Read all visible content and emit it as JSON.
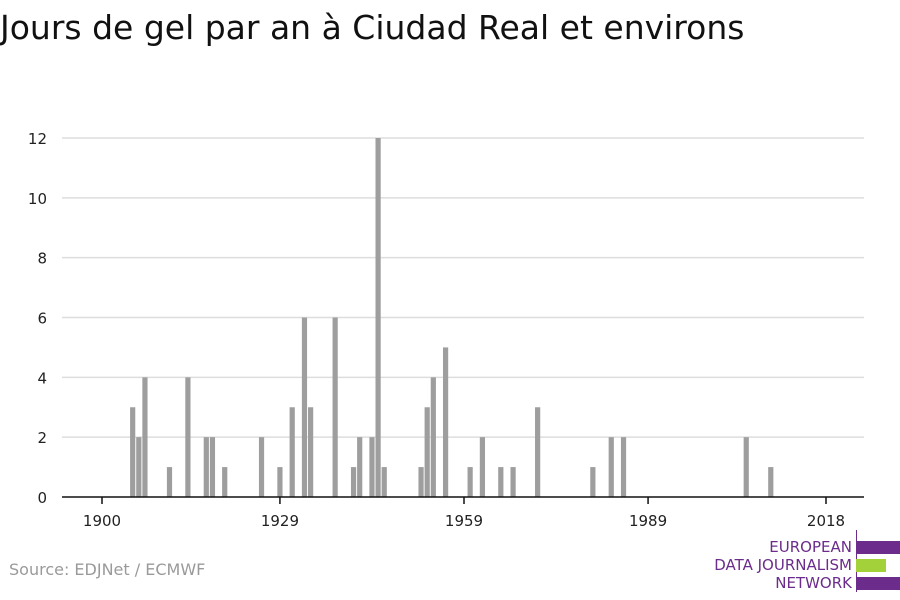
{
  "title": "Jours de gel par an à Ciudad Real et environs",
  "source": "Source: EDJNet / ECMWF",
  "logo": {
    "lines": [
      "EUROPEAN",
      "DATA JOURNALISM",
      "NETWORK"
    ]
  },
  "colors": {
    "bar": "#9e9e9e",
    "grid": "#dddddd",
    "axis": "#111111",
    "logo_purple": "#6c2c8c",
    "logo_green": "#a3d13a"
  },
  "chart_data": {
    "type": "bar",
    "title": "Jours de gel par an à Ciudad Real et environs",
    "xlabel": "",
    "ylabel": "",
    "xlim": [
      1900,
      2018
    ],
    "ylim": [
      0,
      12
    ],
    "x_ticks": [
      1900,
      1929,
      1959,
      1989,
      2018
    ],
    "y_ticks": [
      0,
      2,
      4,
      6,
      8,
      10,
      12
    ],
    "grid": true,
    "points": [
      {
        "x": 1905,
        "y": 3
      },
      {
        "x": 1906,
        "y": 2
      },
      {
        "x": 1907,
        "y": 4
      },
      {
        "x": 1911,
        "y": 1
      },
      {
        "x": 1914,
        "y": 4
      },
      {
        "x": 1917,
        "y": 2
      },
      {
        "x": 1918,
        "y": 2
      },
      {
        "x": 1920,
        "y": 1
      },
      {
        "x": 1926,
        "y": 2
      },
      {
        "x": 1929,
        "y": 1
      },
      {
        "x": 1931,
        "y": 3
      },
      {
        "x": 1933,
        "y": 6
      },
      {
        "x": 1934,
        "y": 3
      },
      {
        "x": 1938,
        "y": 6
      },
      {
        "x": 1941,
        "y": 1
      },
      {
        "x": 1942,
        "y": 2
      },
      {
        "x": 1944,
        "y": 2
      },
      {
        "x": 1945,
        "y": 12
      },
      {
        "x": 1946,
        "y": 1
      },
      {
        "x": 1952,
        "y": 1
      },
      {
        "x": 1953,
        "y": 3
      },
      {
        "x": 1954,
        "y": 4
      },
      {
        "x": 1956,
        "y": 5
      },
      {
        "x": 1960,
        "y": 1
      },
      {
        "x": 1962,
        "y": 2
      },
      {
        "x": 1965,
        "y": 1
      },
      {
        "x": 1967,
        "y": 1
      },
      {
        "x": 1971,
        "y": 3
      },
      {
        "x": 1980,
        "y": 1
      },
      {
        "x": 1983,
        "y": 2
      },
      {
        "x": 1985,
        "y": 2
      },
      {
        "x": 2005,
        "y": 2
      },
      {
        "x": 2009,
        "y": 1
      }
    ]
  }
}
